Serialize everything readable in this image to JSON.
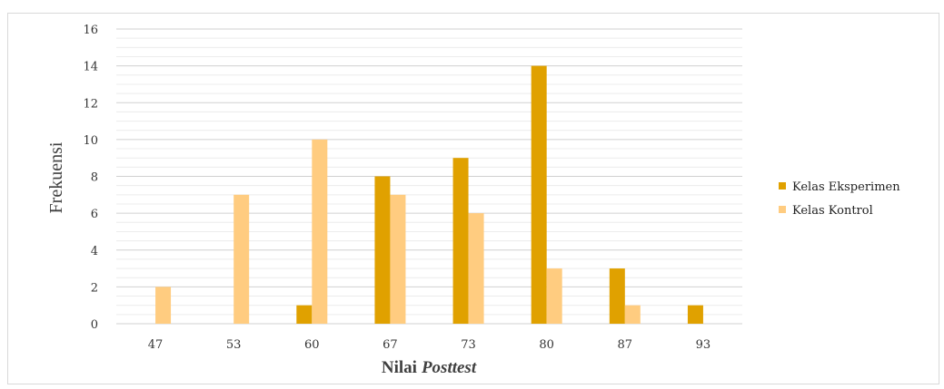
{
  "chart_data": {
    "type": "bar",
    "categories": [
      "47",
      "53",
      "60",
      "67",
      "73",
      "80",
      "87",
      "93"
    ],
    "series": [
      {
        "name": "Kelas Eksperimen",
        "values": [
          0,
          0,
          1,
          8,
          9,
          14,
          3,
          1
        ],
        "color": "#E0A100"
      },
      {
        "name": "Kelas Kontrol",
        "values": [
          2,
          7,
          10,
          7,
          6,
          3,
          1,
          0
        ],
        "color": "#FFCC80"
      }
    ],
    "y_ticks": [
      "0",
      "2",
      "4",
      "6",
      "8",
      "10",
      "12",
      "14",
      "16"
    ],
    "ylim": [
      0,
      16
    ],
    "ylabel": "Frekuensi",
    "xlabel": {
      "prefix": "Nilai",
      "emphasis": "Posttest"
    },
    "grid": true,
    "legend_position": "right"
  }
}
